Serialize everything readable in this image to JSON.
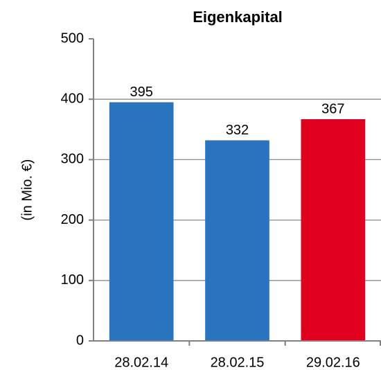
{
  "chart_data": {
    "type": "bar",
    "title": "Eigenkapital",
    "y_label": "(in Mio. €)",
    "categories": [
      "28.02.14",
      "28.02.15",
      "29.02.16"
    ],
    "values": [
      395,
      332,
      367
    ],
    "colors": [
      "#2a73bf",
      "#2a73bf",
      "#e1001e"
    ],
    "ylim": [
      0,
      500
    ],
    "yticks": [
      0,
      100,
      200,
      300,
      400,
      500
    ],
    "grid": true
  }
}
